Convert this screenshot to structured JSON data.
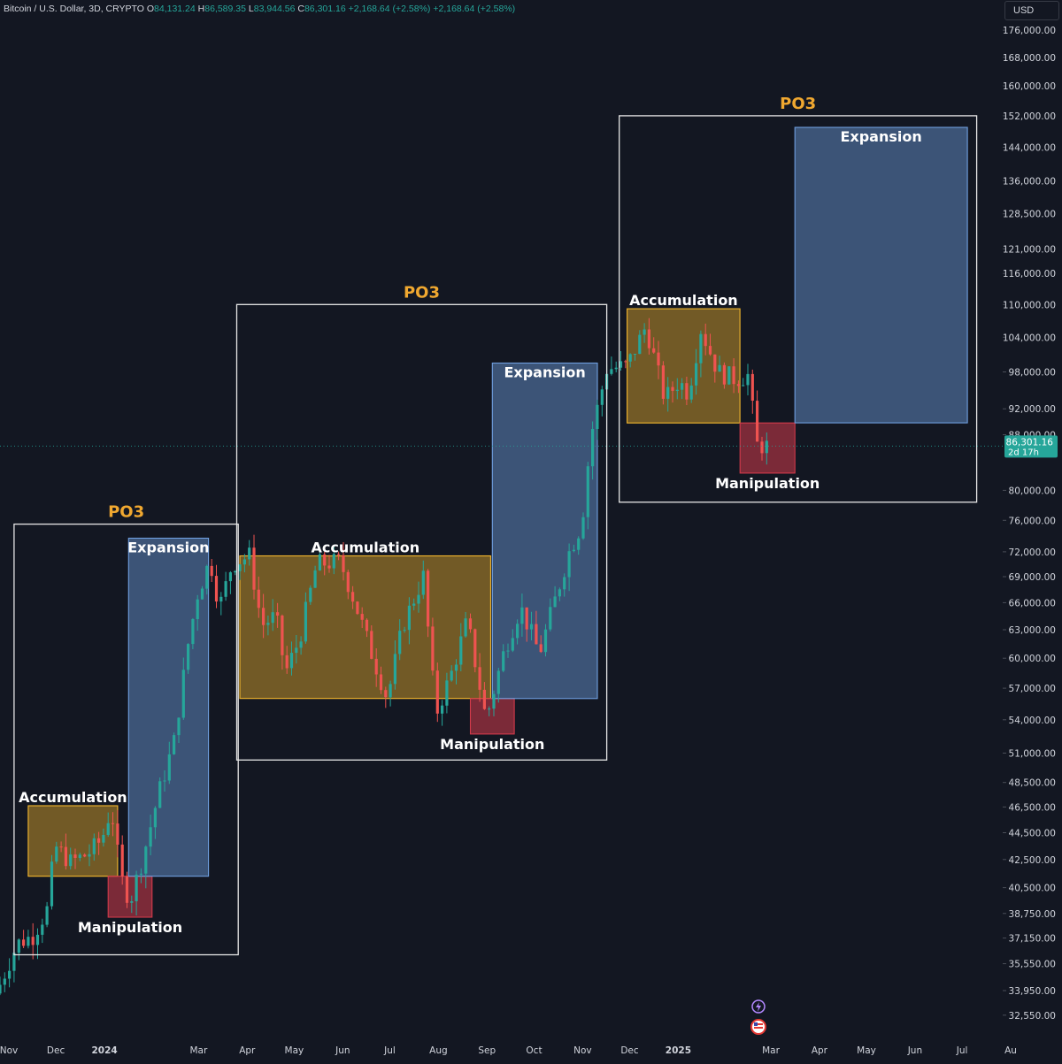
{
  "header": {
    "symbol": "Bitcoin / U.S. Dollar, 3D, CRYPTO",
    "open_label": "O",
    "open": "84,131.24",
    "high_label": "H",
    "high": "86,589.35",
    "low_label": "L",
    "low": "83,944.56",
    "close_label": "C",
    "close": "86,301.16",
    "change_1": "+2,168.64 (+2.58%)",
    "change_2": "+2,168.64 (+2.58%)"
  },
  "currency": "USD",
  "colors": {
    "background": "#131722",
    "up": "#26a69a",
    "down": "#ef5350",
    "accumulation": "#f5b82e",
    "expansion": "#6f9fe0",
    "manipulation": "#d23a4a",
    "po3_title": "#f0a830",
    "frame": "#e6e6e6"
  },
  "chart_data": {
    "type": "candlestick",
    "title": "",
    "scale": "log",
    "ylim": [
      31000,
      182000
    ],
    "y_ticks": [
      176000,
      168000,
      160000,
      152000,
      144000,
      136000,
      128500,
      121000,
      116000,
      110000,
      104000,
      98000,
      92000,
      88000,
      80000,
      76000,
      72000,
      69000,
      66000,
      63000,
      60000,
      57000,
      54000,
      51000,
      48500,
      46500,
      44500,
      42500,
      40500,
      38750,
      37150,
      35550,
      33950,
      32550
    ],
    "y_tick_labels": [
      "176,000.00",
      "168,000.00",
      "160,000.00",
      "152,000.00",
      "144,000.00",
      "136,000.00",
      "128,500.00",
      "121,000.00",
      "116,000.00",
      "110,000.00",
      "104,000.00",
      "98,000.00",
      "92,000.00",
      "88,000.00",
      "80,000.00",
      "76,000.00",
      "72,000.00",
      "69,000.00",
      "66,000.00",
      "63,000.00",
      "60,000.00",
      "57,000.00",
      "54,000.00",
      "51,000.00",
      "48,500.00",
      "46,500.00",
      "44,500.00",
      "42,500.00",
      "40,500.00",
      "38,750.00",
      "37,150.00",
      "35,550.00",
      "33,950.00",
      "32,550.00"
    ],
    "x_range": [
      "2023-11-01",
      "2025-08-01"
    ],
    "x_ticks": [
      {
        "date": "2023-11-01",
        "label": "Nov",
        "bold": false
      },
      {
        "date": "2023-12-01",
        "label": "Dec",
        "bold": false
      },
      {
        "date": "2024-01-01",
        "label": "2024",
        "bold": true
      },
      {
        "date": "2024-03-01",
        "label": "Mar",
        "bold": false
      },
      {
        "date": "2024-04-01",
        "label": "Apr",
        "bold": false
      },
      {
        "date": "2024-05-01",
        "label": "May",
        "bold": false
      },
      {
        "date": "2024-06-01",
        "label": "Jun",
        "bold": false
      },
      {
        "date": "2024-07-01",
        "label": "Jul",
        "bold": false
      },
      {
        "date": "2024-08-01",
        "label": "Aug",
        "bold": false
      },
      {
        "date": "2024-09-01",
        "label": "Sep",
        "bold": false
      },
      {
        "date": "2024-10-01",
        "label": "Oct",
        "bold": false
      },
      {
        "date": "2024-11-01",
        "label": "Nov",
        "bold": false
      },
      {
        "date": "2024-12-01",
        "label": "Dec",
        "bold": false
      },
      {
        "date": "2025-01-01",
        "label": "2025",
        "bold": true
      },
      {
        "date": "2025-03-01",
        "label": "Mar",
        "bold": false
      },
      {
        "date": "2025-04-01",
        "label": "Apr",
        "bold": false
      },
      {
        "date": "2025-05-01",
        "label": "May",
        "bold": false
      },
      {
        "date": "2025-06-01",
        "label": "Jun",
        "bold": false
      },
      {
        "date": "2025-07-01",
        "label": "Jul",
        "bold": false
      },
      {
        "date": "2025-08-01",
        "label": "Au",
        "bold": false
      }
    ],
    "last_price": 86301.16,
    "last_price_label": "86,301.16",
    "countdown_label": "2d 17h",
    "close_path": [
      {
        "date": "2023-11-01",
        "price": 34300
      },
      {
        "date": "2023-11-12",
        "price": 36800
      },
      {
        "date": "2023-11-22",
        "price": 37300
      },
      {
        "date": "2023-12-01",
        "price": 39000
      },
      {
        "date": "2023-12-06",
        "price": 43500
      },
      {
        "date": "2023-12-16",
        "price": 42300
      },
      {
        "date": "2023-12-27",
        "price": 42900
      },
      {
        "date": "2024-01-05",
        "price": 44000
      },
      {
        "date": "2024-01-11",
        "price": 46500
      },
      {
        "date": "2024-01-17",
        "price": 41200
      },
      {
        "date": "2024-01-23",
        "price": 39600
      },
      {
        "date": "2024-01-31",
        "price": 42600
      },
      {
        "date": "2024-02-10",
        "price": 47500
      },
      {
        "date": "2024-02-20",
        "price": 52000
      },
      {
        "date": "2024-02-29",
        "price": 61500
      },
      {
        "date": "2024-03-06",
        "price": 67000
      },
      {
        "date": "2024-03-14",
        "price": 71000
      },
      {
        "date": "2024-03-20",
        "price": 65500
      },
      {
        "date": "2024-03-28",
        "price": 70500
      },
      {
        "date": "2024-04-08",
        "price": 71500
      },
      {
        "date": "2024-04-16",
        "price": 63500
      },
      {
        "date": "2024-04-25",
        "price": 64500
      },
      {
        "date": "2024-05-01",
        "price": 58500
      },
      {
        "date": "2024-05-10",
        "price": 62000
      },
      {
        "date": "2024-05-21",
        "price": 70500
      },
      {
        "date": "2024-06-05",
        "price": 70800
      },
      {
        "date": "2024-06-14",
        "price": 66200
      },
      {
        "date": "2024-06-24",
        "price": 61000
      },
      {
        "date": "2024-07-05",
        "price": 56000
      },
      {
        "date": "2024-07-15",
        "price": 63500
      },
      {
        "date": "2024-07-28",
        "price": 69000
      },
      {
        "date": "2024-08-05",
        "price": 54500
      },
      {
        "date": "2024-08-15",
        "price": 58500
      },
      {
        "date": "2024-08-25",
        "price": 64000
      },
      {
        "date": "2024-09-06",
        "price": 54000
      },
      {
        "date": "2024-09-18",
        "price": 61000
      },
      {
        "date": "2024-09-28",
        "price": 65500
      },
      {
        "date": "2024-10-10",
        "price": 60500
      },
      {
        "date": "2024-10-22",
        "price": 67500
      },
      {
        "date": "2024-10-29",
        "price": 72000
      },
      {
        "date": "2024-11-06",
        "price": 75500
      },
      {
        "date": "2024-11-12",
        "price": 88000
      },
      {
        "date": "2024-11-22",
        "price": 98500
      },
      {
        "date": "2024-12-05",
        "price": 99000
      },
      {
        "date": "2024-12-17",
        "price": 106000
      },
      {
        "date": "2024-12-29",
        "price": 93500
      },
      {
        "date": "2025-01-07",
        "price": 96500
      },
      {
        "date": "2025-01-13",
        "price": 94500
      },
      {
        "date": "2025-01-21",
        "price": 105500
      },
      {
        "date": "2025-02-01",
        "price": 98000
      },
      {
        "date": "2025-02-12",
        "price": 96800
      },
      {
        "date": "2025-02-21",
        "price": 97500
      },
      {
        "date": "2025-02-25",
        "price": 86500
      },
      {
        "date": "2025-03-04",
        "price": 86300
      }
    ],
    "annotations": [
      {
        "kind": "frame",
        "label": "PO3",
        "x0": "2023-11-10",
        "x1": "2024-04-01",
        "y0": 36100,
        "y1": 75500
      },
      {
        "kind": "accumulation",
        "label": "Accumulation",
        "x0": "2023-11-19",
        "x1": "2024-01-15",
        "y0": 41300,
        "y1": 46600
      },
      {
        "kind": "manipulation",
        "label": "Manipulation",
        "x0": "2024-01-09",
        "x1": "2024-02-06",
        "y0": 38500,
        "y1": 41300
      },
      {
        "kind": "expansion",
        "label": "Expansion",
        "x0": "2024-01-22",
        "x1": "2024-03-13",
        "y0": 41300,
        "y1": 73700
      },
      {
        "kind": "frame",
        "label": "PO3",
        "x0": "2024-03-31",
        "x1": "2024-11-22",
        "y0": 50400,
        "y1": 110000
      },
      {
        "kind": "accumulation",
        "label": "Accumulation",
        "x0": "2024-04-02",
        "x1": "2024-09-09",
        "y0": 56000,
        "y1": 71500
      },
      {
        "kind": "manipulation",
        "label": "Manipulation",
        "x0": "2024-08-27",
        "x1": "2024-09-24",
        "y0": 52700,
        "y1": 56000
      },
      {
        "kind": "expansion",
        "label": "Expansion",
        "x0": "2024-09-10",
        "x1": "2024-11-16",
        "y0": 56000,
        "y1": 99500
      },
      {
        "kind": "frame",
        "label": "PO3",
        "x0": "2024-11-30",
        "x1": "2025-07-16",
        "y0": 78400,
        "y1": 152000
      },
      {
        "kind": "accumulation",
        "label": "Accumulation",
        "x0": "2024-12-05",
        "x1": "2025-02-15",
        "y0": 89800,
        "y1": 109200
      },
      {
        "kind": "manipulation",
        "label": "Manipulation",
        "x0": "2025-02-15",
        "x1": "2025-03-22",
        "y0": 82400,
        "y1": 89800
      },
      {
        "kind": "expansion",
        "label": "Expansion",
        "x0": "2025-03-22",
        "x1": "2025-07-10",
        "y0": 89800,
        "y1": 149000
      }
    ]
  }
}
